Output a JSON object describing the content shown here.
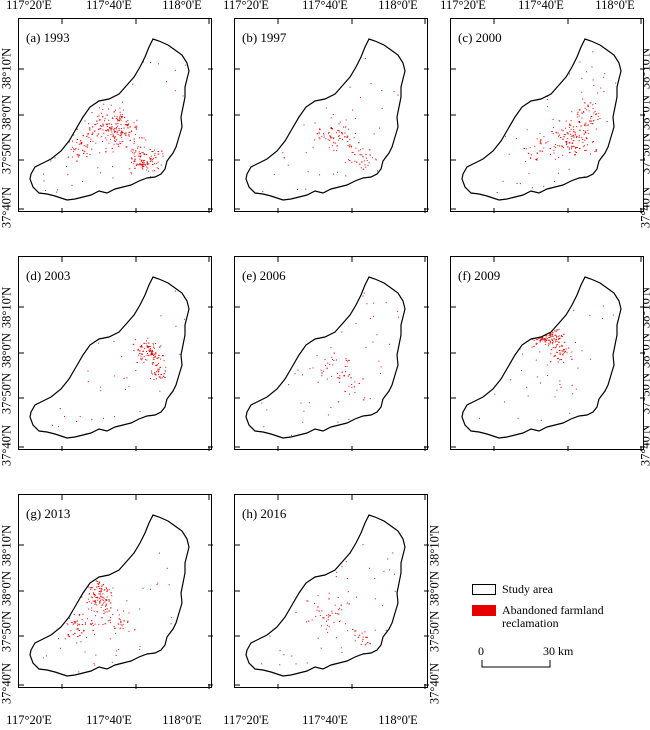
{
  "panels": [
    {
      "label": "(a) 1993",
      "year": "1993"
    },
    {
      "label": "(b) 1997",
      "year": "1997"
    },
    {
      "label": "(c) 2000",
      "year": "2000"
    },
    {
      "label": "(d) 2003",
      "year": "2003"
    },
    {
      "label": "(e) 2006",
      "year": "2006"
    },
    {
      "label": "(f) 2009",
      "year": "2009"
    },
    {
      "label": "(g) 2013",
      "year": "2013"
    },
    {
      "label": "(h) 2016",
      "year": "2016"
    }
  ],
  "longitude_labels": [
    "117°20'E",
    "117°40'E",
    "118°0'E"
  ],
  "latitude_labels": [
    "37°40'N",
    "37°50'N",
    "38°0'N",
    "38°10'N"
  ],
  "legend": {
    "study_area_label": "Study area",
    "reclamation_label_line1": "Abandoned farmland",
    "reclamation_label_line2": "reclamation",
    "study_area_color": "#ffffff",
    "reclamation_color": "#e60000"
  },
  "scale_bar": {
    "start_label": "0",
    "end_label": "30 km"
  }
}
